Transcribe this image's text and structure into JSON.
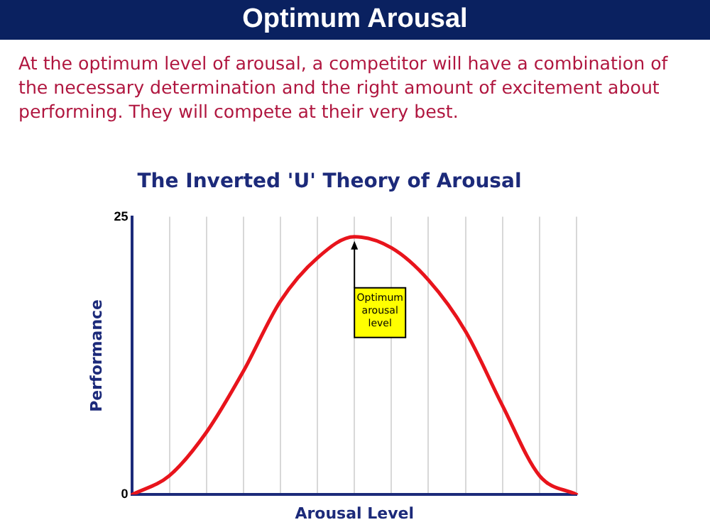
{
  "chart_data": {
    "type": "line",
    "title": "The Inverted 'U' Theory of Arousal",
    "xlabel": "Arousal Level",
    "ylabel": "Performance",
    "categories": [
      null,
      null,
      null,
      null,
      null,
      null,
      null,
      null,
      null,
      null,
      null,
      null,
      null
    ],
    "series": [
      {
        "color": "#e8141c",
        "values": [
          0,
          1.7,
          5.6,
          11.1,
          17.4,
          21.3,
          23.2,
          22.2,
          19.3,
          14.7,
          8.0,
          1.7,
          0
        ]
      }
    ],
    "ylim": [
      0,
      25
    ],
    "yticks": [
      0,
      25
    ],
    "grid": "x",
    "legend": false,
    "marker": "none",
    "line_style": "solid",
    "annotations": [
      "Optimum Arousal",
      "At the optimum level of arousal, a competitor will have a combination of the necessary determination and the right amount of excitement about performing. They will compete at their very best.",
      "Optimum arousal level"
    ]
  }
}
